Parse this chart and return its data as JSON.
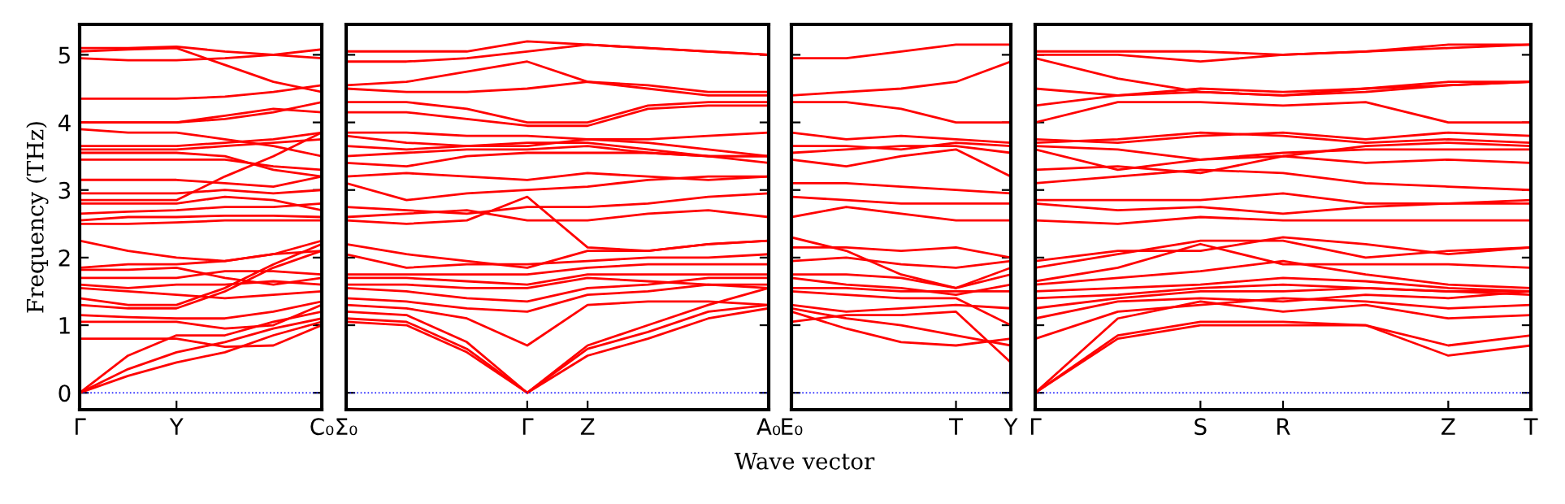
{
  "chart_data": [
    {
      "type": "line",
      "ylabel": "Frequency (THz)",
      "color": "#ff0000",
      "line_style": "solid",
      "marker": "none",
      "tick_labels": "xy",
      "ylim": [
        -0.25,
        5.45
      ],
      "yticks": [
        0,
        1,
        2,
        3,
        4,
        5
      ],
      "categories": [
        "Γ",
        null,
        "Y",
        null,
        null,
        "C₀"
      ],
      "ref_lines": [
        {
          "axis": "y",
          "value": 0,
          "color": "#0000ff",
          "line_style": "dotted"
        }
      ],
      "series": [
        {
          "values": [
            0,
            0.25,
            0.45,
            0.6,
            0.85,
            1.05
          ]
        },
        {
          "values": [
            0,
            0.35,
            0.6,
            0.75,
            0.95,
            1.1
          ]
        },
        {
          "values": [
            0,
            0.55,
            0.85,
            0.85,
            1.05,
            1.2
          ]
        },
        {
          "values": [
            0.8,
            0.8,
            0.8,
            0.68,
            0.7,
            1.0
          ]
        },
        {
          "values": [
            1.05,
            1.05,
            1.05,
            0.95,
            1.0,
            1.3
          ]
        },
        {
          "values": [
            1.15,
            1.12,
            1.1,
            1.1,
            1.2,
            1.35
          ]
        },
        {
          "values": [
            1.3,
            1.25,
            1.25,
            1.5,
            1.85,
            2.1
          ]
        },
        {
          "values": [
            1.4,
            1.3,
            1.3,
            1.55,
            1.9,
            2.2
          ]
        },
        {
          "values": [
            1.55,
            1.5,
            1.45,
            1.4,
            1.45,
            1.5
          ]
        },
        {
          "values": [
            1.6,
            1.55,
            1.6,
            1.6,
            1.65,
            1.6
          ]
        },
        {
          "values": [
            1.7,
            1.7,
            1.7,
            1.8,
            1.8,
            1.75
          ]
        },
        {
          "values": [
            1.82,
            1.82,
            1.85,
            1.7,
            1.6,
            1.7
          ]
        },
        {
          "values": [
            1.85,
            1.9,
            1.9,
            1.95,
            2.05,
            2.1
          ]
        },
        {
          "values": [
            2.25,
            2.1,
            2.0,
            1.95,
            2.05,
            2.25
          ]
        },
        {
          "values": [
            2.5,
            2.5,
            2.52,
            2.55,
            2.55,
            2.55
          ]
        },
        {
          "values": [
            2.55,
            2.6,
            2.6,
            2.62,
            2.62,
            2.6
          ]
        },
        {
          "values": [
            2.65,
            2.68,
            2.7,
            2.75,
            2.75,
            2.8
          ]
        },
        {
          "values": [
            2.8,
            2.8,
            2.8,
            2.9,
            2.85,
            2.7
          ]
        },
        {
          "values": [
            2.85,
            2.85,
            2.85,
            3.2,
            3.5,
            3.85
          ]
        },
        {
          "values": [
            2.95,
            2.95,
            2.95,
            3.0,
            2.95,
            3.0
          ]
        },
        {
          "values": [
            3.15,
            3.15,
            3.15,
            3.1,
            3.05,
            3.2
          ]
        },
        {
          "values": [
            3.45,
            3.45,
            3.45,
            3.45,
            3.35,
            3.3
          ]
        },
        {
          "values": [
            3.55,
            3.55,
            3.55,
            3.5,
            3.3,
            3.2
          ]
        },
        {
          "values": [
            3.6,
            3.6,
            3.6,
            3.65,
            3.7,
            3.75
          ]
        },
        {
          "values": [
            3.65,
            3.65,
            3.65,
            3.7,
            3.75,
            3.85
          ]
        },
        {
          "values": [
            3.9,
            3.85,
            3.85,
            3.75,
            3.65,
            3.5
          ]
        },
        {
          "values": [
            4.0,
            4.0,
            4.0,
            4.1,
            4.2,
            4.15
          ]
        },
        {
          "values": [
            4.0,
            4.0,
            4.0,
            4.05,
            4.15,
            4.3
          ]
        },
        {
          "values": [
            4.35,
            4.35,
            4.35,
            4.38,
            4.45,
            4.55
          ]
        },
        {
          "values": [
            4.95,
            4.92,
            4.92,
            4.95,
            5.0,
            4.95
          ]
        },
        {
          "values": [
            5.05,
            5.08,
            5.1,
            4.85,
            4.6,
            4.45
          ]
        },
        {
          "values": [
            5.1,
            5.1,
            5.12,
            5.05,
            5.0,
            5.08
          ]
        }
      ]
    },
    {
      "type": "line",
      "color": "#ff0000",
      "line_style": "solid",
      "marker": "none",
      "tick_labels": "x",
      "ylim": [
        -0.25,
        5.45
      ],
      "yticks": [
        0,
        1,
        2,
        3,
        4,
        5
      ],
      "categories": [
        "Σ₀",
        null,
        null,
        "Γ",
        "Z",
        null,
        null,
        "A₀"
      ],
      "ref_lines": [
        {
          "axis": "y",
          "value": 0,
          "color": "#0000ff",
          "line_style": "dotted"
        }
      ],
      "series": [
        {
          "values": [
            1.05,
            1.0,
            0.6,
            0,
            0.55,
            0.8,
            1.1,
            1.25
          ]
        },
        {
          "values": [
            1.1,
            1.05,
            0.65,
            0,
            0.65,
            0.9,
            1.2,
            1.3
          ]
        },
        {
          "values": [
            1.2,
            1.15,
            0.75,
            0,
            0.7,
            1.0,
            1.3,
            1.55
          ]
        },
        {
          "values": [
            1.3,
            1.25,
            1.1,
            0.7,
            1.3,
            1.35,
            1.35,
            1.3
          ]
        },
        {
          "values": [
            1.4,
            1.35,
            1.25,
            1.2,
            1.45,
            1.5,
            1.6,
            1.55
          ]
        },
        {
          "values": [
            1.55,
            1.5,
            1.4,
            1.35,
            1.55,
            1.6,
            1.7,
            1.7
          ]
        },
        {
          "values": [
            1.6,
            1.6,
            1.55,
            1.55,
            1.7,
            1.65,
            1.6,
            1.6
          ]
        },
        {
          "values": [
            1.7,
            1.7,
            1.65,
            1.6,
            1.75,
            1.75,
            1.75,
            1.75
          ]
        },
        {
          "values": [
            1.75,
            1.75,
            1.75,
            1.75,
            1.85,
            1.9,
            1.9,
            1.9
          ]
        },
        {
          "values": [
            2.05,
            1.85,
            1.9,
            1.9,
            1.95,
            2.0,
            2.0,
            2.05
          ]
        },
        {
          "values": [
            2.2,
            2.05,
            1.95,
            1.85,
            2.1,
            2.1,
            2.2,
            2.25
          ]
        },
        {
          "values": [
            2.55,
            2.5,
            2.55,
            2.9,
            2.15,
            2.1,
            2.2,
            2.25
          ]
        },
        {
          "values": [
            2.6,
            2.65,
            2.7,
            2.55,
            2.55,
            2.65,
            2.7,
            2.6
          ]
        },
        {
          "values": [
            2.75,
            2.7,
            2.65,
            2.75,
            2.75,
            2.8,
            2.9,
            2.95
          ]
        },
        {
          "values": [
            3.1,
            2.85,
            2.95,
            3.0,
            3.05,
            3.15,
            3.2,
            3.2
          ]
        },
        {
          "values": [
            3.2,
            3.25,
            3.2,
            3.15,
            3.25,
            3.2,
            3.15,
            3.2
          ]
        },
        {
          "values": [
            3.4,
            3.35,
            3.5,
            3.55,
            3.55,
            3.55,
            3.5,
            3.5
          ]
        },
        {
          "values": [
            3.5,
            3.55,
            3.6,
            3.6,
            3.65,
            3.55,
            3.5,
            3.4
          ]
        },
        {
          "values": [
            3.65,
            3.6,
            3.65,
            3.7,
            3.7,
            3.6,
            3.5,
            3.5
          ]
        },
        {
          "values": [
            3.8,
            3.7,
            3.65,
            3.65,
            3.75,
            3.7,
            3.6,
            3.5
          ]
        },
        {
          "values": [
            3.85,
            3.85,
            3.8,
            3.8,
            3.75,
            3.75,
            3.8,
            3.85
          ]
        },
        {
          "values": [
            4.15,
            4.15,
            4.05,
            3.95,
            3.95,
            4.2,
            4.25,
            4.25
          ]
        },
        {
          "values": [
            4.3,
            4.3,
            4.2,
            4.0,
            4.0,
            4.25,
            4.3,
            4.3
          ]
        },
        {
          "values": [
            4.5,
            4.45,
            4.45,
            4.5,
            4.6,
            4.55,
            4.45,
            4.45
          ]
        },
        {
          "values": [
            4.55,
            4.6,
            4.75,
            4.9,
            4.6,
            4.5,
            4.4,
            4.4
          ]
        },
        {
          "values": [
            4.9,
            4.9,
            4.95,
            5.05,
            5.15,
            5.1,
            5.05,
            5.0
          ]
        },
        {
          "values": [
            5.05,
            5.05,
            5.05,
            5.2,
            5.15,
            5.1,
            5.05,
            5.0
          ]
        }
      ]
    },
    {
      "type": "line",
      "xlabel": "Wave vector",
      "color": "#ff0000",
      "line_style": "solid",
      "marker": "none",
      "tick_labels": "x",
      "ylim": [
        -0.25,
        5.45
      ],
      "yticks": [
        0,
        1,
        2,
        3,
        4,
        5
      ],
      "categories": [
        "E₀",
        null,
        null,
        "T",
        "Y"
      ],
      "ref_lines": [
        {
          "axis": "y",
          "value": 0,
          "color": "#0000ff",
          "line_style": "dotted"
        }
      ],
      "series": [
        {
          "values": [
            1.05,
            1.15,
            1.15,
            1.2,
            0.45
          ]
        },
        {
          "values": [
            1.2,
            0.95,
            0.75,
            0.7,
            0.8
          ]
        },
        {
          "values": [
            1.25,
            1.1,
            1.0,
            0.85,
            0.7
          ]
        },
        {
          "values": [
            1.3,
            1.2,
            1.25,
            1.3,
            1.25
          ]
        },
        {
          "values": [
            1.5,
            1.45,
            1.4,
            1.4,
            1.0
          ]
        },
        {
          "values": [
            1.55,
            1.55,
            1.5,
            1.5,
            1.5
          ]
        },
        {
          "values": [
            1.7,
            1.6,
            1.55,
            1.45,
            1.6
          ]
        },
        {
          "values": [
            1.75,
            1.75,
            1.7,
            1.55,
            1.75
          ]
        },
        {
          "values": [
            1.95,
            2.0,
            1.9,
            1.85,
            1.95
          ]
        },
        {
          "values": [
            2.15,
            2.15,
            2.1,
            2.15,
            2.0
          ]
        },
        {
          "values": [
            2.3,
            2.1,
            1.75,
            1.55,
            1.85
          ]
        },
        {
          "values": [
            2.6,
            2.75,
            2.65,
            2.55,
            2.55
          ]
        },
        {
          "values": [
            2.9,
            2.85,
            2.8,
            2.8,
            2.8
          ]
        },
        {
          "values": [
            3.1,
            3.1,
            3.05,
            3.0,
            2.95
          ]
        },
        {
          "values": [
            3.45,
            3.35,
            3.5,
            3.6,
            3.2
          ]
        },
        {
          "values": [
            3.55,
            3.6,
            3.65,
            3.65,
            3.55
          ]
        },
        {
          "values": [
            3.65,
            3.65,
            3.6,
            3.7,
            3.65
          ]
        },
        {
          "values": [
            3.85,
            3.75,
            3.8,
            3.75,
            3.7
          ]
        },
        {
          "values": [
            4.3,
            4.3,
            4.2,
            4.0,
            4.0
          ]
        },
        {
          "values": [
            4.4,
            4.45,
            4.5,
            4.6,
            4.9
          ]
        },
        {
          "values": [
            4.95,
            4.95,
            5.05,
            5.15,
            5.15
          ]
        }
      ]
    },
    {
      "type": "line",
      "color": "#ff0000",
      "line_style": "solid",
      "marker": "none",
      "tick_labels": "x",
      "ylim": [
        -0.25,
        5.45
      ],
      "yticks": [
        0,
        1,
        2,
        3,
        4,
        5
      ],
      "categories": [
        "Γ",
        null,
        "S",
        "R",
        null,
        "Z",
        "T"
      ],
      "ref_lines": [
        {
          "axis": "y",
          "value": 0,
          "color": "#0000ff",
          "line_style": "dotted"
        }
      ],
      "series": [
        {
          "values": [
            0,
            0.8,
            1.0,
            1.0,
            1.0,
            0.55,
            0.7
          ]
        },
        {
          "values": [
            0,
            0.85,
            1.05,
            1.05,
            1.0,
            0.7,
            0.85
          ]
        },
        {
          "values": [
            0,
            1.1,
            1.35,
            1.2,
            1.3,
            1.1,
            1.15
          ]
        },
        {
          "values": [
            0.8,
            1.2,
            1.3,
            1.4,
            1.35,
            1.25,
            1.3
          ]
        },
        {
          "values": [
            1.1,
            1.35,
            1.4,
            1.35,
            1.45,
            1.4,
            1.5
          ]
        },
        {
          "values": [
            1.25,
            1.4,
            1.5,
            1.5,
            1.55,
            1.5,
            1.45
          ]
        },
        {
          "values": [
            1.4,
            1.45,
            1.55,
            1.6,
            1.55,
            1.5,
            1.5
          ]
        },
        {
          "values": [
            1.5,
            1.55,
            1.6,
            1.7,
            1.65,
            1.55,
            1.5
          ]
        },
        {
          "values": [
            1.6,
            1.7,
            1.8,
            1.95,
            1.75,
            1.6,
            1.55
          ]
        },
        {
          "values": [
            1.65,
            1.85,
            2.2,
            1.9,
            1.9,
            1.9,
            1.85
          ]
        },
        {
          "values": [
            1.85,
            2.05,
            2.25,
            2.25,
            2.0,
            2.1,
            2.15
          ]
        },
        {
          "values": [
            1.95,
            2.1,
            2.1,
            2.3,
            2.2,
            2.05,
            2.15
          ]
        },
        {
          "values": [
            2.55,
            2.5,
            2.6,
            2.55,
            2.55,
            2.55,
            2.55
          ]
        },
        {
          "values": [
            2.8,
            2.7,
            2.75,
            2.65,
            2.75,
            2.8,
            2.8
          ]
        },
        {
          "values": [
            2.85,
            2.85,
            2.85,
            2.95,
            2.8,
            2.8,
            2.85
          ]
        },
        {
          "values": [
            3.1,
            3.2,
            3.3,
            3.25,
            3.1,
            3.05,
            3.0
          ]
        },
        {
          "values": [
            3.3,
            3.35,
            3.25,
            3.5,
            3.4,
            3.45,
            3.4
          ]
        },
        {
          "values": [
            3.6,
            3.3,
            3.45,
            3.55,
            3.6,
            3.6,
            3.6
          ]
        },
        {
          "values": [
            3.65,
            3.6,
            3.45,
            3.5,
            3.65,
            3.7,
            3.65
          ]
        },
        {
          "values": [
            3.7,
            3.75,
            3.85,
            3.8,
            3.7,
            3.75,
            3.7
          ]
        },
        {
          "values": [
            3.75,
            3.7,
            3.8,
            3.85,
            3.75,
            3.85,
            3.8
          ]
        },
        {
          "values": [
            4.0,
            4.3,
            4.3,
            4.25,
            4.3,
            4.0,
            4.0
          ]
        },
        {
          "values": [
            4.25,
            4.4,
            4.45,
            4.4,
            4.45,
            4.55,
            4.6
          ]
        },
        {
          "values": [
            4.5,
            4.4,
            4.5,
            4.45,
            4.5,
            4.55,
            4.6
          ]
        },
        {
          "values": [
            4.95,
            4.65,
            4.45,
            4.4,
            4.5,
            4.6,
            4.6
          ]
        },
        {
          "values": [
            5.0,
            5.0,
            4.9,
            5.0,
            5.05,
            5.1,
            5.15
          ]
        },
        {
          "values": [
            5.05,
            5.05,
            5.05,
            5.0,
            5.05,
            5.15,
            5.15
          ]
        }
      ]
    }
  ]
}
